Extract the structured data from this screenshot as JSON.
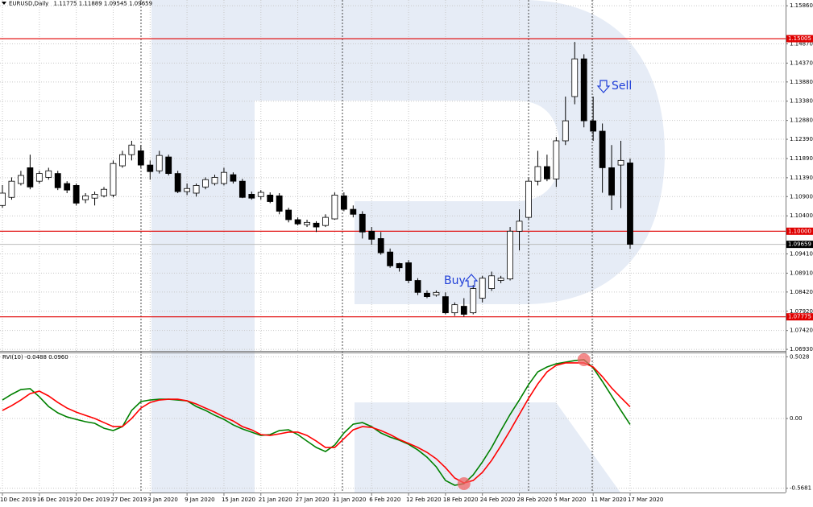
{
  "chart_data": [
    {
      "type": "candlestick",
      "title": "EURUSD,Daily",
      "categories": [
        "10 Dec 2019",
        null,
        null,
        null,
        "16 Dec 2019",
        null,
        null,
        null,
        "20 Dec 2019",
        null,
        null,
        null,
        "27 Dec 2019",
        null,
        null,
        null,
        "3 Jan 2020",
        null,
        null,
        null,
        "9 Jan 2020",
        null,
        null,
        null,
        "15 Jan 2020",
        null,
        null,
        null,
        "21 Jan 2020",
        null,
        null,
        null,
        "27 Jan 2020",
        null,
        null,
        null,
        "31 Jan 2020",
        null,
        null,
        null,
        "6 Feb 2020",
        null,
        null,
        null,
        "12 Feb 2020",
        null,
        null,
        null,
        "18 Feb 2020",
        null,
        null,
        null,
        "24 Feb 2020",
        null,
        null,
        null,
        "28 Feb 2020",
        null,
        null,
        null,
        "5 Mar 2020",
        null,
        null,
        null,
        "11 Mar 2020",
        null,
        null,
        null,
        "17 Mar 2020"
      ],
      "open": [
        1.1067,
        1.1088,
        1.1124,
        1.1165,
        1.113,
        1.114,
        1.115,
        1.1124,
        1.1119,
        1.1082,
        1.1086,
        1.1092,
        1.1094,
        1.117,
        1.1199,
        1.1209,
        1.1172,
        1.1157,
        1.1193,
        1.115,
        1.1103,
        1.1099,
        1.1115,
        1.1124,
        1.1124,
        1.1147,
        1.113,
        1.1096,
        1.109,
        1.1094,
        1.1092,
        1.1055,
        1.103,
        1.1017,
        1.1021,
        1.1015,
        1.1032,
        1.1092,
        1.1057,
        1.1044,
        1.1,
        1.0981,
        1.0946,
        1.0916,
        1.0918,
        1.0872,
        1.0839,
        1.0834,
        1.083,
        1.0788,
        1.0805,
        1.0788,
        1.0826,
        1.0851,
        1.0872,
        1.0876,
        1.1,
        1.1036,
        1.113,
        1.1168,
        1.1136,
        1.1235,
        1.135,
        1.1448,
        1.1287,
        1.126,
        1.1165,
        1.1172,
        1.11775
      ],
      "high": [
        1.112,
        1.114,
        1.1157,
        1.1199,
        1.1157,
        1.1165,
        1.1157,
        1.113,
        1.1124,
        1.1099,
        1.1103,
        1.1115,
        1.1184,
        1.1209,
        1.1235,
        1.1224,
        1.1184,
        1.1209,
        1.1199,
        1.1157,
        1.1124,
        1.1124,
        1.114,
        1.1147,
        1.1165,
        1.1153,
        1.1136,
        1.1103,
        1.1107,
        1.1101,
        1.1099,
        1.1061,
        1.1036,
        1.103,
        1.1026,
        1.1044,
        1.1101,
        1.1101,
        1.1067,
        1.1052,
        1.1011,
        1.0998,
        1.0955,
        1.0918,
        1.0925,
        1.0878,
        1.0846,
        1.0846,
        1.0841,
        1.0815,
        1.0826,
        1.086,
        1.0884,
        1.0895,
        1.0884,
        1.1011,
        1.1057,
        1.114,
        1.1209,
        1.1199,
        1.1245,
        1.135,
        1.1492,
        1.146,
        1.135,
        1.128,
        1.1224,
        1.1235,
        1.11889
      ],
      "low": [
        1.1061,
        1.1082,
        1.1119,
        1.1109,
        1.1124,
        1.1134,
        1.1107,
        1.1099,
        1.1067,
        1.1073,
        1.1067,
        1.1088,
        1.1088,
        1.1165,
        1.1184,
        1.1165,
        1.1134,
        1.115,
        1.1145,
        1.1099,
        1.1094,
        1.109,
        1.1109,
        1.1119,
        1.1119,
        1.1124,
        1.1086,
        1.1082,
        1.1082,
        1.1073,
        1.1044,
        1.1023,
        1.1015,
        1.1011,
        1.0998,
        1.1011,
        1.103,
        1.1052,
        1.1036,
        1.0981,
        1.0965,
        1.0939,
        1.0905,
        1.0895,
        1.0865,
        1.0834,
        1.0826,
        1.083,
        1.0784,
        1.078,
        1.0778,
        1.0784,
        1.0815,
        1.0845,
        1.0865,
        1.0872,
        1.095,
        1.103,
        1.1119,
        1.113,
        1.1115,
        1.1224,
        1.133,
        1.127,
        1.1235,
        1.11,
        1.1055,
        1.106,
        1.09545
      ],
      "close": [
        1.1099,
        1.113,
        1.1145,
        1.1115,
        1.115,
        1.1157,
        1.1113,
        1.1107,
        1.1073,
        1.1092,
        1.1096,
        1.1109,
        1.1176,
        1.1199,
        1.1224,
        1.1172,
        1.1155,
        1.1197,
        1.115,
        1.1103,
        1.1111,
        1.1119,
        1.1134,
        1.114,
        1.1153,
        1.113,
        1.1088,
        1.1086,
        1.1101,
        1.1077,
        1.1052,
        1.103,
        1.1019,
        1.1023,
        1.1011,
        1.1036,
        1.1094,
        1.1057,
        1.1044,
        1.0998,
        1.0979,
        1.0944,
        1.091,
        1.0905,
        1.0872,
        1.0841,
        1.083,
        1.0841,
        1.0788,
        1.0809,
        1.0784,
        1.0851,
        1.0878,
        1.0884,
        1.0878,
        1.1,
        1.1026,
        1.113,
        1.1168,
        1.1136,
        1.1235,
        1.1287,
        1.1448,
        1.1287,
        1.126,
        1.1165,
        1.1094,
        1.1184,
        1.09659
      ],
      "up_color": "#ffffff",
      "down_color": "#000000",
      "ylim": [
        1.0689,
        1.1601
      ],
      "yticks": [
        {
          "value": 1.1586,
          "label": "1.15860"
        },
        {
          "value": 1.1487,
          "label": "1.14870"
        },
        {
          "value": 1.1437,
          "label": "1.14370"
        },
        {
          "value": 1.1388,
          "label": "1.13880"
        },
        {
          "value": 1.1338,
          "label": "1.13380"
        },
        {
          "value": 1.1288,
          "label": "1.12880"
        },
        {
          "value": 1.1239,
          "label": "1.12390"
        },
        {
          "value": 1.1189,
          "label": "1.11890"
        },
        {
          "value": 1.1139,
          "label": "1.11390"
        },
        {
          "value": 1.109,
          "label": "1.10900"
        },
        {
          "value": 1.104,
          "label": "1.10400"
        },
        {
          "value": 1.0941,
          "label": "1.09410"
        },
        {
          "value": 1.0891,
          "label": "1.08910"
        },
        {
          "value": 1.0842,
          "label": "1.08420"
        },
        {
          "value": 1.0792,
          "label": "1.07920"
        },
        {
          "value": 1.0742,
          "label": "1.07420"
        },
        {
          "value": 1.0693,
          "label": "1.06930"
        }
      ],
      "levels": [
        1.15005,
        {
          "value": 1.1,
          "label": "1.10000"
        },
        1.07775
      ],
      "level_color": "#e00000",
      "grid": true,
      "annotations": [
        "Buy",
        "Sell"
      ]
    },
    {
      "type": "line",
      "title": "RVI(10)",
      "series": [
        {
          "color": "#008000",
          "values": [
            0.151,
            0.197,
            0.236,
            0.243,
            0.177,
            0.098,
            0.046,
            0.013,
            -0.007,
            -0.026,
            -0.039,
            -0.079,
            -0.098,
            -0.066,
            0.066,
            0.138,
            0.151,
            0.157,
            0.157,
            0.151,
            0.144,
            0.098,
            0.066,
            0.026,
            -0.007,
            -0.052,
            -0.085,
            -0.111,
            -0.138,
            -0.131,
            -0.098,
            -0.092,
            -0.131,
            -0.184,
            -0.236,
            -0.269,
            -0.216,
            -0.118,
            -0.046,
            -0.033,
            -0.066,
            -0.118,
            -0.151,
            -0.177,
            -0.21,
            -0.256,
            -0.315,
            -0.394,
            -0.505,
            -0.544,
            -0.531,
            -0.459,
            -0.354,
            -0.236,
            -0.098,
            0.033,
            0.151,
            0.276,
            0.38,
            0.42,
            0.446,
            0.459,
            0.472,
            0.479,
            0.413,
            0.302,
            0.184,
            0.066,
            -0.0488
          ]
        },
        {
          "color": "#ff0000",
          "values": [
            0.066,
            0.105,
            0.151,
            0.203,
            0.223,
            0.184,
            0.131,
            0.085,
            0.052,
            0.026,
            0.0,
            -0.033,
            -0.066,
            -0.066,
            0.0,
            0.085,
            0.131,
            0.151,
            0.157,
            0.157,
            0.144,
            0.118,
            0.085,
            0.052,
            0.013,
            -0.02,
            -0.066,
            -0.092,
            -0.131,
            -0.138,
            -0.125,
            -0.111,
            -0.111,
            -0.138,
            -0.184,
            -0.236,
            -0.236,
            -0.164,
            -0.092,
            -0.066,
            -0.072,
            -0.098,
            -0.131,
            -0.171,
            -0.203,
            -0.236,
            -0.276,
            -0.328,
            -0.4,
            -0.485,
            -0.525,
            -0.505,
            -0.439,
            -0.341,
            -0.223,
            -0.098,
            0.033,
            0.164,
            0.282,
            0.38,
            0.433,
            0.453,
            0.453,
            0.453,
            0.42,
            0.341,
            0.249,
            0.171,
            0.096
          ],
          "value_labels": [
            null,
            null,
            null,
            null,
            null,
            null,
            null,
            null,
            null,
            null,
            null,
            null,
            null,
            null,
            null,
            null,
            null,
            null,
            null,
            null,
            null,
            null,
            null,
            null,
            null,
            null,
            null,
            null,
            null,
            null,
            null,
            null,
            null,
            null,
            null,
            null,
            null,
            null,
            null,
            null,
            null,
            null,
            null,
            null,
            null,
            null,
            null,
            null,
            null,
            null,
            null,
            null,
            null,
            null,
            null,
            null,
            null,
            null,
            null,
            null,
            null,
            null,
            null,
            null,
            null,
            null,
            null,
            null,
            "0.0960"
          ]
        }
      ],
      "ylim": [
        -0.603,
        0.538
      ],
      "yticks": [
        0.5028,
        {
          "value": 0,
          "label": "0.00"
        },
        -0.5681
      ],
      "highlight_indices": [
        50,
        63
      ],
      "highlight_color": "#f06464"
    }
  ]
}
